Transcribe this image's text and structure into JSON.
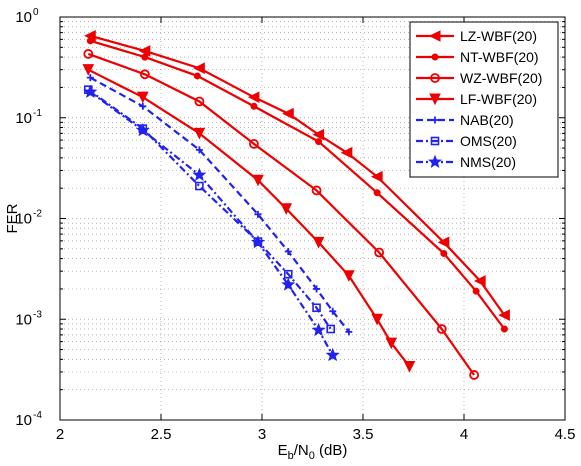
{
  "chart_data": {
    "type": "line",
    "xlabel": {
      "main": "E",
      "sub1": "b",
      "mid": "/N",
      "sub2": "0",
      "tail": " (dB)"
    },
    "ylabel": "FER",
    "xlim": [
      2,
      4.5
    ],
    "ylim": [
      0.0001,
      1
    ],
    "yscale": "log",
    "grid": true,
    "legend_position": "top-right",
    "x_ticks": [
      {
        "value": 2,
        "label": "2"
      },
      {
        "value": 2.5,
        "label": "2.5"
      },
      {
        "value": 3,
        "label": "3"
      },
      {
        "value": 3.5,
        "label": "3.5"
      },
      {
        "value": 4,
        "label": "4"
      },
      {
        "value": 4.5,
        "label": "4.5"
      }
    ],
    "y_ticks": [
      {
        "exp": 0,
        "base": "10",
        "sup": "0"
      },
      {
        "exp": -1,
        "base": "10",
        "sup": "-1"
      },
      {
        "exp": -2,
        "base": "10",
        "sup": "-2"
      },
      {
        "exp": -3,
        "base": "10",
        "sup": "-3"
      },
      {
        "exp": -4,
        "base": "10",
        "sup": "-4"
      }
    ],
    "series": [
      {
        "name": "LZ-WBF(20)",
        "color": "#ee0000",
        "line": "solid",
        "marker": "triangle-left",
        "x": [
          2.15,
          2.42,
          2.69,
          2.96,
          3.13,
          3.28,
          3.42,
          3.57,
          3.9,
          4.08,
          4.2
        ],
        "y": [
          0.65,
          0.46,
          0.31,
          0.16,
          0.11,
          0.068,
          0.045,
          0.026,
          0.0058,
          0.0024,
          0.0011
        ]
      },
      {
        "name": "NT-WBF(20)",
        "color": "#ee0000",
        "line": "solid",
        "marker": "dot",
        "x": [
          2.15,
          2.42,
          2.68,
          2.96,
          3.28,
          3.57,
          3.9,
          4.06,
          4.2
        ],
        "y": [
          0.58,
          0.4,
          0.26,
          0.13,
          0.058,
          0.018,
          0.0045,
          0.0019,
          0.0008
        ]
      },
      {
        "name": "WZ-WBF(20)",
        "color": "#ee0000",
        "line": "solid",
        "marker": "circle",
        "x": [
          2.14,
          2.42,
          2.69,
          2.96,
          3.27,
          3.58,
          3.89,
          4.05
        ],
        "y": [
          0.43,
          0.27,
          0.145,
          0.055,
          0.019,
          0.0046,
          0.0008,
          0.00028
        ]
      },
      {
        "name": "LF-WBF(20)",
        "color": "#ee0000",
        "line": "solid",
        "marker": "triangle-down",
        "x": [
          2.14,
          2.41,
          2.69,
          2.98,
          3.12,
          3.28,
          3.43,
          3.57,
          3.64,
          3.73
        ],
        "y": [
          0.3,
          0.16,
          0.07,
          0.024,
          0.0125,
          0.0058,
          0.0027,
          0.001,
          0.00058,
          0.00034
        ]
      },
      {
        "name": "NAB(20)",
        "color": "#2222ee",
        "line": "dashed",
        "marker": "plus",
        "x": [
          2.15,
          2.41,
          2.69,
          2.98,
          3.13,
          3.27,
          3.35,
          3.43
        ],
        "y": [
          0.25,
          0.13,
          0.048,
          0.011,
          0.0047,
          0.002,
          0.0012,
          0.00075
        ]
      },
      {
        "name": "OMS(20)",
        "color": "#2222ee",
        "line": "dashdot",
        "marker": "square",
        "x": [
          2.14,
          2.41,
          2.69,
          2.98,
          3.13,
          3.27,
          3.34
        ],
        "y": [
          0.19,
          0.078,
          0.021,
          0.0059,
          0.0028,
          0.0013,
          0.0008
        ]
      },
      {
        "name": "NMS(20)",
        "color": "#2222ee",
        "line": "dashdot",
        "marker": "star",
        "x": [
          2.15,
          2.41,
          2.69,
          2.98,
          3.13,
          3.28,
          3.35
        ],
        "y": [
          0.18,
          0.075,
          0.027,
          0.0058,
          0.0022,
          0.00078,
          0.00044
        ]
      }
    ]
  }
}
